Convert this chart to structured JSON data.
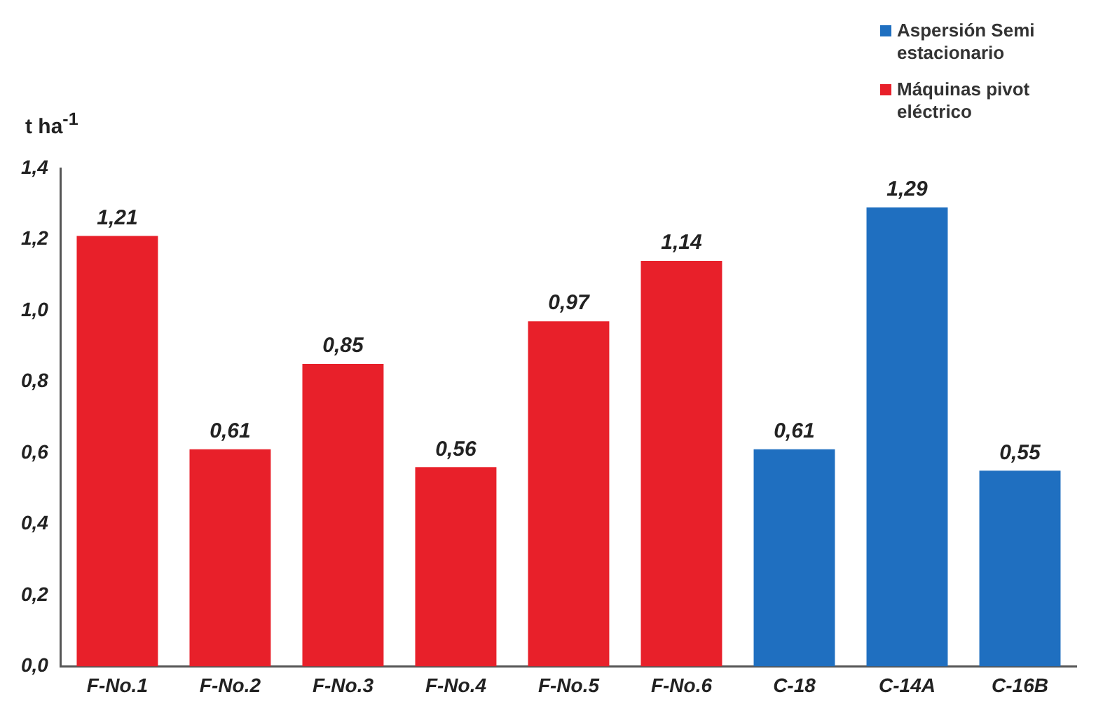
{
  "chart_data": {
    "type": "bar",
    "ylabel": "t ha$^{-1}$",
    "categories": [
      "F-No.1",
      "F-No.2",
      "F-No.3",
      "F-No.4",
      "F-No.5",
      "F-No.6",
      "C-18",
      "C-14A",
      "C-16B"
    ],
    "series": [
      {
        "name": "Aspersión Semi estacionario",
        "color": "#1f6fc0",
        "values": [
          null,
          null,
          null,
          null,
          null,
          null,
          0.61,
          1.29,
          0.55
        ],
        "value_labels": [
          null,
          null,
          null,
          null,
          null,
          null,
          "0,61",
          "1,29",
          "0,55"
        ]
      },
      {
        "name": "Máquinas pivot eléctrico",
        "color": "#e8202a",
        "values": [
          1.21,
          0.61,
          0.85,
          0.56,
          0.97,
          1.14,
          null,
          null,
          null
        ],
        "value_labels": [
          "1,21",
          "0,61",
          "0,85",
          "0,56",
          "0,97",
          "1,14",
          null,
          null,
          null
        ]
      }
    ],
    "stacked": true,
    "ylim": [
      0,
      1.4
    ],
    "yticks": [
      {
        "value": 0,
        "label": "0,0"
      },
      {
        "value": 0.2,
        "label": "0,2"
      },
      {
        "value": 0.4,
        "label": "0,4"
      },
      {
        "value": 0.6,
        "label": "0,6"
      },
      {
        "value": 0.8,
        "label": "0,8"
      },
      {
        "value": 1,
        "label": "1,0"
      },
      {
        "value": 1.2,
        "label": "1,2"
      },
      {
        "value": 1.4,
        "label": "1,4"
      }
    ],
    "grid": false,
    "legend": "top right"
  }
}
